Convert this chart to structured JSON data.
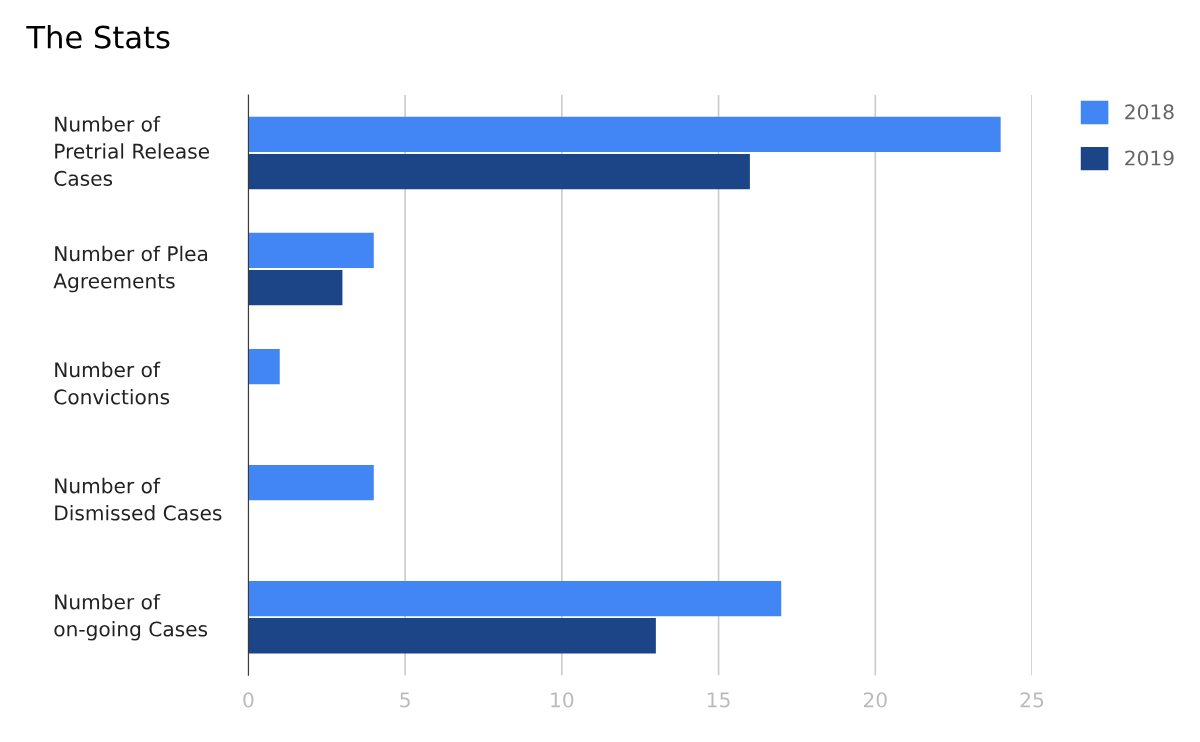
{
  "chart_data": {
    "type": "bar",
    "orientation": "horizontal",
    "title": "The Stats",
    "categories": [
      "Number of\nPretrial Release\nCases",
      "Number of Plea\nAgreements",
      "Number of\nConvictions",
      "Number of\nDismissed Cases",
      "Number of\non-going Cases"
    ],
    "series": [
      {
        "name": "2018",
        "color": "#4285f4",
        "values": [
          24,
          4,
          1,
          4,
          17
        ]
      },
      {
        "name": "2019",
        "color": "#1c4587",
        "values": [
          16,
          3,
          null,
          null,
          13
        ]
      }
    ],
    "xlim": [
      0,
      25
    ],
    "xticks": [
      0,
      5,
      10,
      15,
      20,
      25
    ],
    "grid": "x",
    "legend": "top right"
  }
}
